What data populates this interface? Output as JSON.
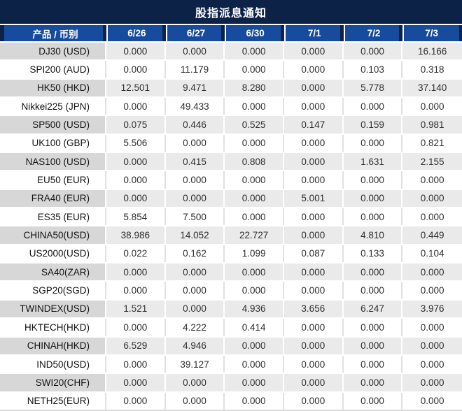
{
  "colors": {
    "title_navy": "#0c2247",
    "header_blue": "#174b9d",
    "row_gray": "#eaeaea",
    "product_cell_gray": "#d7d7d7",
    "nonzero_red": "#ee1c25",
    "zero_text": "#2e2e2e"
  },
  "chart_data": {
    "type": "table",
    "title": "股指派息通知",
    "columns": [
      "产品 / 币别",
      "6/26",
      "6/27",
      "6/30",
      "7/1",
      "7/2",
      "7/3"
    ],
    "zero_value": "0.000",
    "rows": [
      {
        "product": "DJ30 (USD)",
        "values": [
          "0.000",
          "0.000",
          "0.000",
          "0.000",
          "0.000",
          "16.166"
        ]
      },
      {
        "product": "SPI200 (AUD)",
        "values": [
          "0.000",
          "11.179",
          "0.000",
          "0.000",
          "0.103",
          "0.318"
        ]
      },
      {
        "product": "HK50 (HKD)",
        "values": [
          "12.501",
          "9.471",
          "8.280",
          "0.000",
          "5.778",
          "37.140"
        ]
      },
      {
        "product": "Nikkei225 (JPN)",
        "values": [
          "0.000",
          "49.433",
          "0.000",
          "0.000",
          "0.000",
          "0.000"
        ]
      },
      {
        "product": "SP500 (USD)",
        "values": [
          "0.075",
          "0.446",
          "0.525",
          "0.147",
          "0.159",
          "0.981"
        ]
      },
      {
        "product": "UK100 (GBP)",
        "values": [
          "5.506",
          "0.000",
          "0.000",
          "0.000",
          "0.000",
          "0.821"
        ]
      },
      {
        "product": "NAS100 (USD)",
        "values": [
          "0.000",
          "0.415",
          "0.808",
          "0.000",
          "1.631",
          "2.155"
        ]
      },
      {
        "product": "EU50 (EUR)",
        "values": [
          "0.000",
          "0.000",
          "0.000",
          "0.000",
          "0.000",
          "0.000"
        ]
      },
      {
        "product": "FRA40 (EUR)",
        "values": [
          "0.000",
          "0.000",
          "0.000",
          "5.001",
          "0.000",
          "0.000"
        ]
      },
      {
        "product": "ES35 (EUR)",
        "values": [
          "5.854",
          "7.500",
          "0.000",
          "0.000",
          "0.000",
          "0.000"
        ]
      },
      {
        "product": "CHINA50(USD)",
        "values": [
          "38.986",
          "14.052",
          "22.727",
          "0.000",
          "4.810",
          "0.449"
        ]
      },
      {
        "product": "US2000(USD)",
        "values": [
          "0.022",
          "0.162",
          "1.099",
          "0.087",
          "0.133",
          "0.104"
        ]
      },
      {
        "product": "SA40(ZAR)",
        "values": [
          "0.000",
          "0.000",
          "0.000",
          "0.000",
          "0.000",
          "0.000"
        ]
      },
      {
        "product": "SGP20(SGD)",
        "values": [
          "0.000",
          "0.000",
          "0.000",
          "0.000",
          "0.000",
          "0.000"
        ]
      },
      {
        "product": "TWINDEX(USD)",
        "values": [
          "1.521",
          "0.000",
          "4.936",
          "3.656",
          "6.247",
          "3.976"
        ]
      },
      {
        "product": "HKTECH(HKD)",
        "values": [
          "0.000",
          "4.222",
          "0.414",
          "0.000",
          "0.000",
          "0.000"
        ]
      },
      {
        "product": "CHINAH(HKD)",
        "values": [
          "6.529",
          "4.946",
          "0.000",
          "0.000",
          "0.000",
          "0.000"
        ]
      },
      {
        "product": "IND50(USD)",
        "values": [
          "0.000",
          "39.127",
          "0.000",
          "0.000",
          "0.000",
          "0.000"
        ]
      },
      {
        "product": "SWI20(CHF)",
        "values": [
          "0.000",
          "0.000",
          "0.000",
          "0.000",
          "0.000",
          "0.000"
        ]
      },
      {
        "product": "NETH25(EUR)",
        "values": [
          "0.000",
          "0.000",
          "0.000",
          "0.000",
          "0.000",
          "0.000"
        ]
      }
    ]
  }
}
